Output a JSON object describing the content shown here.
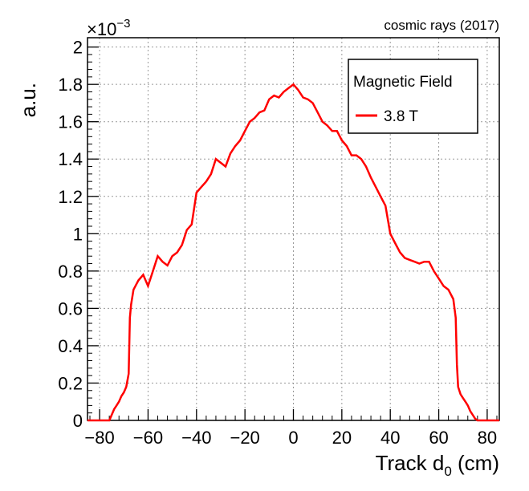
{
  "corner_label": "cosmic rays (2017)",
  "chart_data": {
    "type": "line",
    "xlabel_main": "Track d",
    "xlabel_sub": "0",
    "xlabel_unit": " (cm)",
    "ylabel": "a.u.",
    "y_exponent_base": "×10",
    "y_exponent": "−3",
    "xlim": [
      -85,
      85
    ],
    "ylim": [
      0,
      2.05
    ],
    "xticks": [
      -80,
      -60,
      -40,
      -20,
      0,
      20,
      40,
      60,
      80
    ],
    "xtick_labels": [
      "−80",
      "−60",
      "−40",
      "−20",
      "0",
      "20",
      "40",
      "60",
      "80"
    ],
    "yticks": [
      0,
      0.2,
      0.4,
      0.6,
      0.8,
      1,
      1.2,
      1.4,
      1.6,
      1.8,
      2
    ],
    "ytick_labels": [
      "0",
      "0.2",
      "0.4",
      "0.6",
      "0.8",
      "1",
      "1.2",
      "1.4",
      "1.6",
      "1.8",
      "2"
    ],
    "grid": true,
    "legend": {
      "title": "Magnetic Field",
      "placement": "top-right"
    },
    "series": [
      {
        "name": "3.8 T",
        "color": "#ff0000",
        "x": [
          -85,
          -76,
          -75,
          -74,
          -73,
          -72,
          -71,
          -70,
          -69,
          -68,
          -67.5,
          -67,
          -66,
          -64,
          -62,
          -60,
          -58,
          -56,
          -54,
          -52,
          -50,
          -48,
          -46,
          -44,
          -42,
          -40,
          -38,
          -36,
          -34,
          -32,
          -30,
          -28,
          -26,
          -24,
          -22,
          -20,
          -18,
          -16,
          -14,
          -12,
          -10,
          -8,
          -6,
          -4,
          -2,
          0,
          2,
          4,
          6,
          8,
          10,
          12,
          14,
          16,
          18,
          20,
          22,
          24,
          26,
          28,
          30,
          32,
          34,
          36,
          38,
          40,
          42,
          44,
          46,
          48,
          50,
          52,
          54,
          56,
          58,
          60,
          62,
          64,
          66,
          67,
          67.5,
          68,
          69,
          70,
          71,
          72,
          73,
          74,
          75,
          76,
          85
        ],
        "y": [
          0,
          0,
          0.03,
          0.06,
          0.08,
          0.1,
          0.13,
          0.15,
          0.18,
          0.25,
          0.55,
          0.62,
          0.7,
          0.75,
          0.78,
          0.72,
          0.8,
          0.88,
          0.85,
          0.83,
          0.88,
          0.9,
          0.94,
          1.02,
          1.05,
          1.22,
          1.25,
          1.28,
          1.32,
          1.4,
          1.38,
          1.36,
          1.43,
          1.47,
          1.5,
          1.55,
          1.6,
          1.62,
          1.65,
          1.66,
          1.72,
          1.74,
          1.73,
          1.76,
          1.78,
          1.8,
          1.77,
          1.73,
          1.72,
          1.7,
          1.65,
          1.6,
          1.58,
          1.55,
          1.55,
          1.5,
          1.47,
          1.42,
          1.42,
          1.4,
          1.36,
          1.3,
          1.25,
          1.2,
          1.15,
          1.0,
          0.95,
          0.9,
          0.87,
          0.86,
          0.85,
          0.84,
          0.85,
          0.85,
          0.8,
          0.76,
          0.72,
          0.7,
          0.65,
          0.55,
          0.3,
          0.18,
          0.14,
          0.12,
          0.1,
          0.08,
          0.05,
          0.03,
          0.01,
          0,
          0
        ]
      }
    ]
  }
}
